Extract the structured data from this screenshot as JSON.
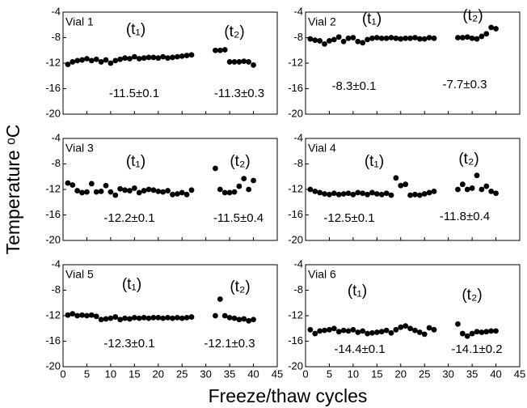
{
  "xlabel": "Freeze/thaw cycles",
  "ylabel": "Temperature ᵒC",
  "chart_data": [
    {
      "type": "scatter",
      "title": "Vial 1",
      "color": "#000000",
      "xlim": [
        0,
        45
      ],
      "ylim": [
        -20,
        -4
      ],
      "xticks": [
        0,
        5,
        10,
        15,
        20,
        25,
        30,
        35,
        40,
        45
      ],
      "yticks": [
        -4,
        -8,
        -12,
        -16,
        -20
      ],
      "annotations": [
        "(t₁)",
        "(t₂)",
        "-11.5±0.1",
        "-11.3±0.3"
      ],
      "x": [
        1,
        2,
        3,
        4,
        5,
        6,
        7,
        8,
        9,
        10,
        11,
        12,
        13,
        14,
        15,
        16,
        17,
        18,
        19,
        20,
        21,
        22,
        23,
        24,
        25,
        26,
        27,
        32,
        33,
        34,
        35,
        36,
        37,
        38,
        39,
        40
      ],
      "values": [
        -12.2,
        -11.8,
        -11.6,
        -11.5,
        -11.3,
        -11.6,
        -11.4,
        -11.8,
        -11.5,
        -12.0,
        -11.6,
        -11.4,
        -11.2,
        -11.3,
        -11.0,
        -11.3,
        -11.2,
        -11.1,
        -11.1,
        -11.2,
        -11.0,
        -11.2,
        -11.1,
        -11.0,
        -10.9,
        -10.8,
        -10.7,
        -10.0,
        -10.0,
        -9.9,
        -11.8,
        -11.8,
        -11.8,
        -11.7,
        -11.8,
        -12.3
      ]
    },
    {
      "type": "scatter",
      "title": "Vial 2",
      "color": "#000000",
      "xlim": [
        0,
        45
      ],
      "ylim": [
        -20,
        -4
      ],
      "xticks": [
        0,
        5,
        10,
        15,
        20,
        25,
        30,
        35,
        40,
        45
      ],
      "yticks": [
        -4,
        -8,
        -12,
        -16,
        -20
      ],
      "annotations": [
        "(t₁)",
        "(t₂)",
        "-8.3±0.1",
        "-7.7±0.3"
      ],
      "x": [
        1,
        2,
        3,
        4,
        5,
        6,
        7,
        8,
        9,
        10,
        11,
        12,
        13,
        14,
        15,
        16,
        17,
        18,
        19,
        20,
        21,
        22,
        23,
        24,
        25,
        26,
        27,
        32,
        33,
        34,
        35,
        36,
        37,
        38,
        39,
        40
      ],
      "values": [
        -8.2,
        -8.4,
        -8.5,
        -9.0,
        -8.5,
        -8.3,
        -7.9,
        -8.6,
        -8.1,
        -8.0,
        -8.6,
        -8.8,
        -8.3,
        -8.1,
        -8.0,
        -8.1,
        -8.1,
        -8.0,
        -8.1,
        -8.2,
        -8.1,
        -8.1,
        -8.0,
        -8.2,
        -8.2,
        -8.0,
        -8.1,
        -8.0,
        -8.0,
        -7.9,
        -8.1,
        -8.2,
        -7.8,
        -7.4,
        -6.4,
        -6.6
      ]
    },
    {
      "type": "scatter",
      "title": "Vial 3",
      "color": "#000000",
      "xlim": [
        0,
        45
      ],
      "ylim": [
        -20,
        -4
      ],
      "xticks": [
        0,
        5,
        10,
        15,
        20,
        25,
        30,
        35,
        40,
        45
      ],
      "yticks": [
        -4,
        -8,
        -12,
        -16,
        -20
      ],
      "annotations": [
        "(t₁)",
        "(t₂)",
        "-12.2±0.1",
        "-11.5±0.4"
      ],
      "x": [
        1,
        2,
        3,
        4,
        5,
        6,
        7,
        8,
        9,
        10,
        11,
        12,
        13,
        14,
        15,
        16,
        17,
        18,
        19,
        20,
        21,
        22,
        23,
        24,
        25,
        26,
        27,
        32,
        33,
        34,
        35,
        36,
        37,
        38,
        39,
        40
      ],
      "values": [
        -11.0,
        -11.3,
        -12.2,
        -12.5,
        -12.4,
        -11.1,
        -12.4,
        -12.3,
        -11.4,
        -12.4,
        -12.9,
        -11.9,
        -12.1,
        -12.2,
        -11.8,
        -12.5,
        -12.2,
        -12.0,
        -12.1,
        -12.3,
        -12.4,
        -12.2,
        -12.8,
        -12.7,
        -12.5,
        -12.8,
        -12.1,
        -8.7,
        -12.0,
        -12.5,
        -12.5,
        -12.4,
        -11.5,
        -10.3,
        -12.0,
        -10.6
      ]
    },
    {
      "type": "scatter",
      "title": "Vial 4",
      "color": "#000000",
      "xlim": [
        0,
        45
      ],
      "ylim": [
        -20,
        -4
      ],
      "xticks": [
        0,
        5,
        10,
        15,
        20,
        25,
        30,
        35,
        40,
        45
      ],
      "yticks": [
        -4,
        -8,
        -12,
        -16,
        -20
      ],
      "annotations": [
        "(t₁)",
        "(t₂)",
        "-12.5±0.1",
        "-11.8±0.4"
      ],
      "x": [
        1,
        2,
        3,
        4,
        5,
        6,
        7,
        8,
        9,
        10,
        11,
        12,
        13,
        14,
        15,
        16,
        17,
        18,
        19,
        20,
        21,
        22,
        23,
        24,
        25,
        26,
        27,
        32,
        33,
        34,
        35,
        36,
        37,
        38,
        39,
        40
      ],
      "values": [
        -12.0,
        -12.3,
        -12.5,
        -12.7,
        -12.8,
        -12.6,
        -12.8,
        -12.7,
        -12.6,
        -12.8,
        -12.5,
        -12.6,
        -12.8,
        -12.5,
        -12.7,
        -12.8,
        -12.6,
        -12.9,
        -10.2,
        -11.4,
        -11.2,
        -12.9,
        -12.8,
        -12.9,
        -12.7,
        -12.5,
        -12.3,
        -12.0,
        -11.2,
        -12.0,
        -11.8,
        -9.8,
        -12.0,
        -11.5,
        -12.3,
        -12.6
      ]
    },
    {
      "type": "scatter",
      "title": "Vial 5",
      "color": "#000000",
      "xlim": [
        0,
        45
      ],
      "ylim": [
        -20,
        -4
      ],
      "xticks": [
        0,
        5,
        10,
        15,
        20,
        25,
        30,
        35,
        40,
        45
      ],
      "yticks": [
        -4,
        -8,
        -12,
        -16,
        -20
      ],
      "annotations": [
        "(t₁)",
        "(t₂)",
        "-12.3±0.1",
        "-12.1±0.3"
      ],
      "x": [
        1,
        2,
        3,
        4,
        5,
        6,
        7,
        8,
        9,
        10,
        11,
        12,
        13,
        14,
        15,
        16,
        17,
        18,
        19,
        20,
        21,
        22,
        23,
        24,
        25,
        26,
        27,
        32,
        33,
        34,
        35,
        36,
        37,
        38,
        39,
        40
      ],
      "values": [
        -11.9,
        -11.7,
        -12.0,
        -11.9,
        -12.0,
        -11.9,
        -12.1,
        -12.6,
        -12.5,
        -12.4,
        -12.2,
        -12.6,
        -12.4,
        -12.5,
        -12.3,
        -12.4,
        -12.3,
        -12.4,
        -12.3,
        -12.3,
        -12.4,
        -12.3,
        -12.4,
        -12.3,
        -12.4,
        -12.3,
        -12.2,
        -12.0,
        -9.4,
        -12.0,
        -12.3,
        -12.4,
        -12.6,
        -12.5,
        -12.8,
        -12.6
      ]
    },
    {
      "type": "scatter",
      "title": "Vial 6",
      "color": "#000000",
      "xlim": [
        0,
        45
      ],
      "ylim": [
        -20,
        -4
      ],
      "xticks": [
        0,
        5,
        10,
        15,
        20,
        25,
        30,
        35,
        40,
        45
      ],
      "yticks": [
        -4,
        -8,
        -12,
        -16,
        -20
      ],
      "annotations": [
        "(t₁)",
        "(t₂)",
        "-14.4±0.1",
        "-14.1±0.2"
      ],
      "x": [
        1,
        2,
        3,
        4,
        5,
        6,
        7,
        8,
        9,
        10,
        11,
        12,
        13,
        14,
        15,
        16,
        17,
        18,
        19,
        20,
        21,
        22,
        23,
        24,
        25,
        26,
        27,
        32,
        33,
        34,
        35,
        36,
        37,
        38,
        39,
        40
      ],
      "values": [
        -14.2,
        -14.8,
        -14.4,
        -14.3,
        -14.2,
        -14.0,
        -14.5,
        -14.3,
        -14.4,
        -14.2,
        -14.6,
        -14.4,
        -14.8,
        -14.7,
        -14.6,
        -14.5,
        -14.3,
        -14.7,
        -14.2,
        -13.8,
        -13.6,
        -14.0,
        -14.3,
        -14.6,
        -14.9,
        -13.9,
        -14.2,
        -13.3,
        -14.8,
        -15.2,
        -14.8,
        -14.5,
        -14.6,
        -14.5,
        -14.4,
        -14.4
      ]
    }
  ]
}
